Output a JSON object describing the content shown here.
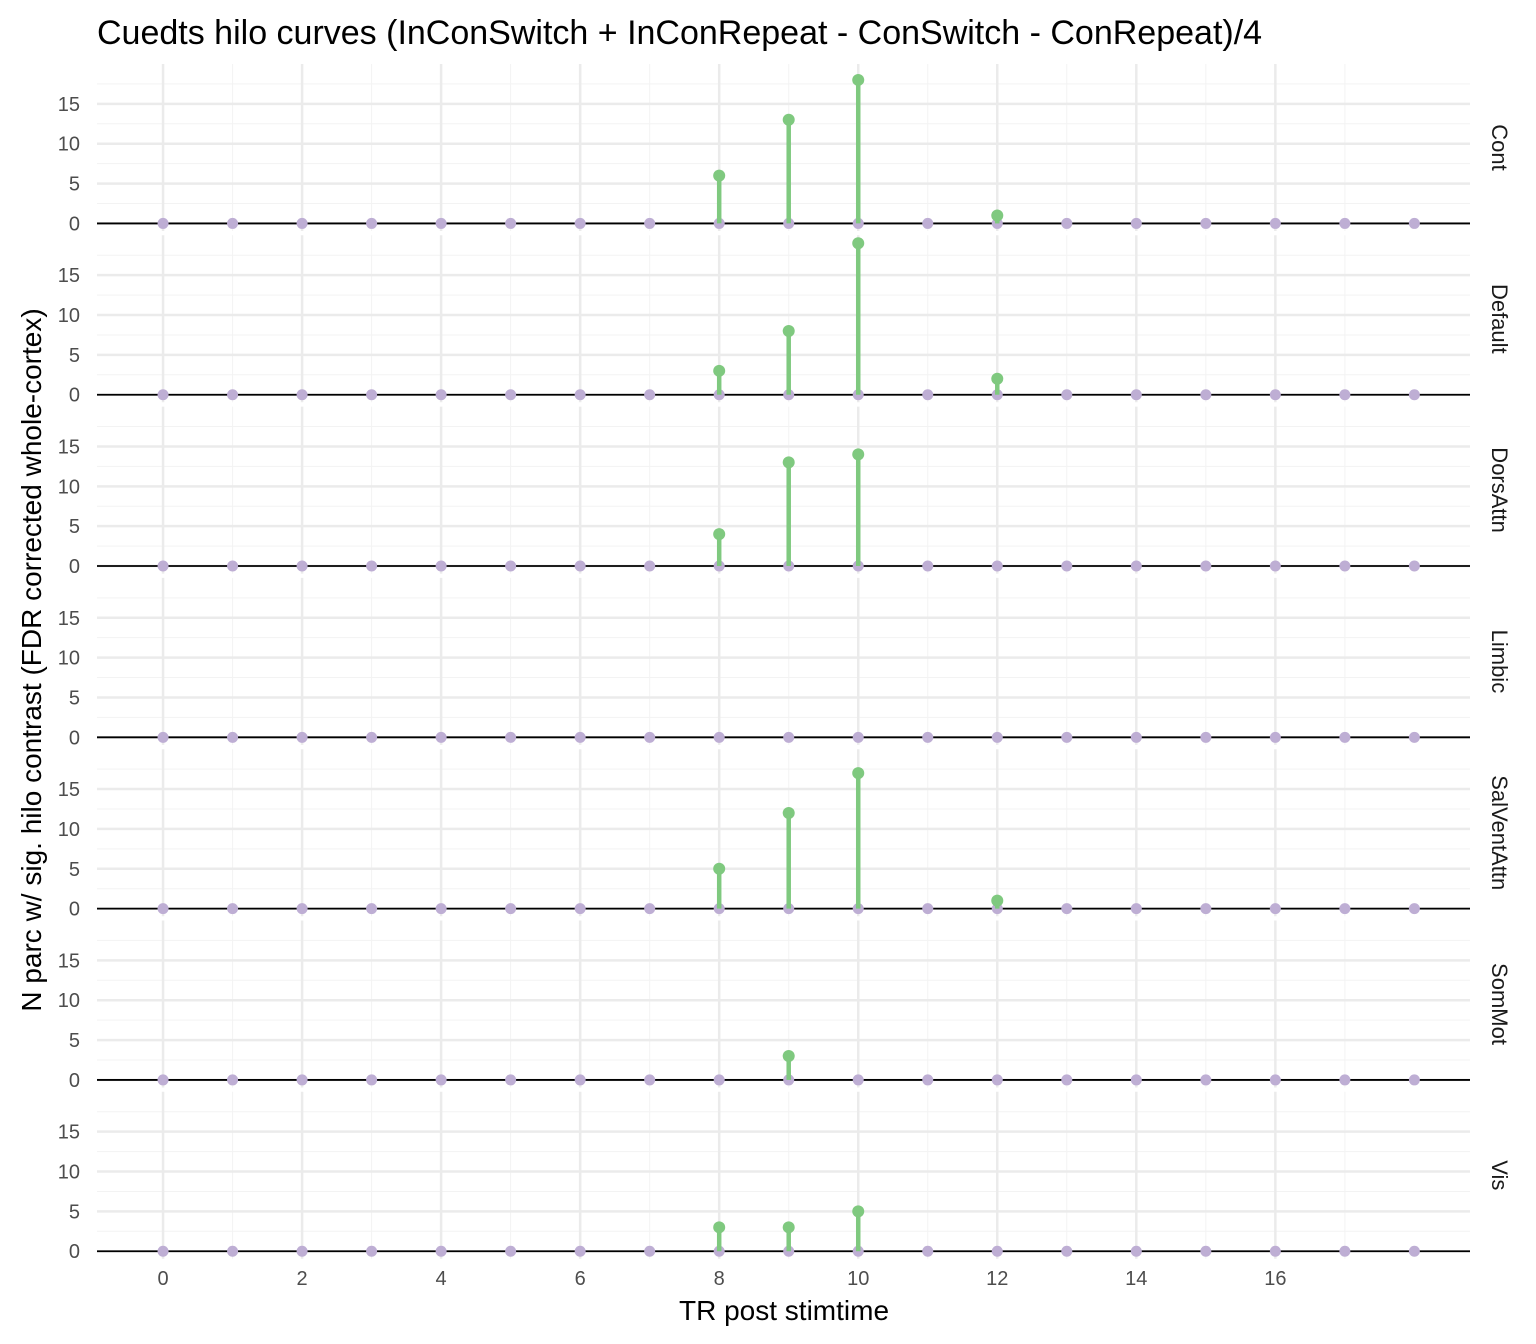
{
  "chart_data": {
    "type": "lollipop",
    "title": "Cuedts hilo curves (InConSwitch + InConRepeat - ConSwitch - ConRepeat)/4",
    "xlabel": "TR post stimtime",
    "ylabel": "N parc w/ sig. hilo contrast (FDR corrected whole-cortex)",
    "x_ticks": [
      0,
      2,
      4,
      6,
      8,
      10,
      12,
      14,
      16
    ],
    "y_ticks": [
      0,
      5,
      10,
      15
    ],
    "xlim": [
      -0.95,
      18.8
    ],
    "ylim": [
      -0.95,
      20
    ],
    "grid": true,
    "x": [
      0,
      1,
      2,
      3,
      4,
      5,
      6,
      7,
      8,
      9,
      10,
      11,
      12,
      13,
      14,
      15,
      16,
      17,
      18
    ],
    "colors": {
      "positive": "#7fc97f",
      "baseline": "#beaed4",
      "zero_line": "#000000",
      "grid": "#ebebeb"
    },
    "panels": [
      {
        "label": "Cont",
        "values": [
          0,
          0,
          0,
          0,
          0,
          0,
          0,
          0,
          6,
          13,
          18,
          0,
          1,
          0,
          0,
          0,
          0,
          0,
          0
        ]
      },
      {
        "label": "Default",
        "values": [
          0,
          0,
          0,
          0,
          0,
          0,
          0,
          0,
          3,
          8,
          19,
          0,
          2,
          0,
          0,
          0,
          0,
          0,
          0
        ]
      },
      {
        "label": "DorsAttn",
        "values": [
          0,
          0,
          0,
          0,
          0,
          0,
          0,
          0,
          4,
          13,
          14,
          0,
          0,
          0,
          0,
          0,
          0,
          0,
          0
        ]
      },
      {
        "label": "Limbic",
        "values": [
          0,
          0,
          0,
          0,
          0,
          0,
          0,
          0,
          0,
          0,
          0,
          0,
          0,
          0,
          0,
          0,
          0,
          0,
          0
        ]
      },
      {
        "label": "SalVentAttn",
        "values": [
          0,
          0,
          0,
          0,
          0,
          0,
          0,
          0,
          5,
          12,
          17,
          0,
          1,
          0,
          0,
          0,
          0,
          0,
          0
        ]
      },
      {
        "label": "SomMot",
        "values": [
          0,
          0,
          0,
          0,
          0,
          0,
          0,
          0,
          0,
          3,
          0,
          0,
          0,
          0,
          0,
          0,
          0,
          0,
          0
        ]
      },
      {
        "label": "Vis",
        "values": [
          0,
          0,
          0,
          0,
          0,
          0,
          0,
          0,
          3,
          3,
          5,
          0,
          0,
          0,
          0,
          0,
          0,
          0,
          0
        ]
      }
    ]
  }
}
